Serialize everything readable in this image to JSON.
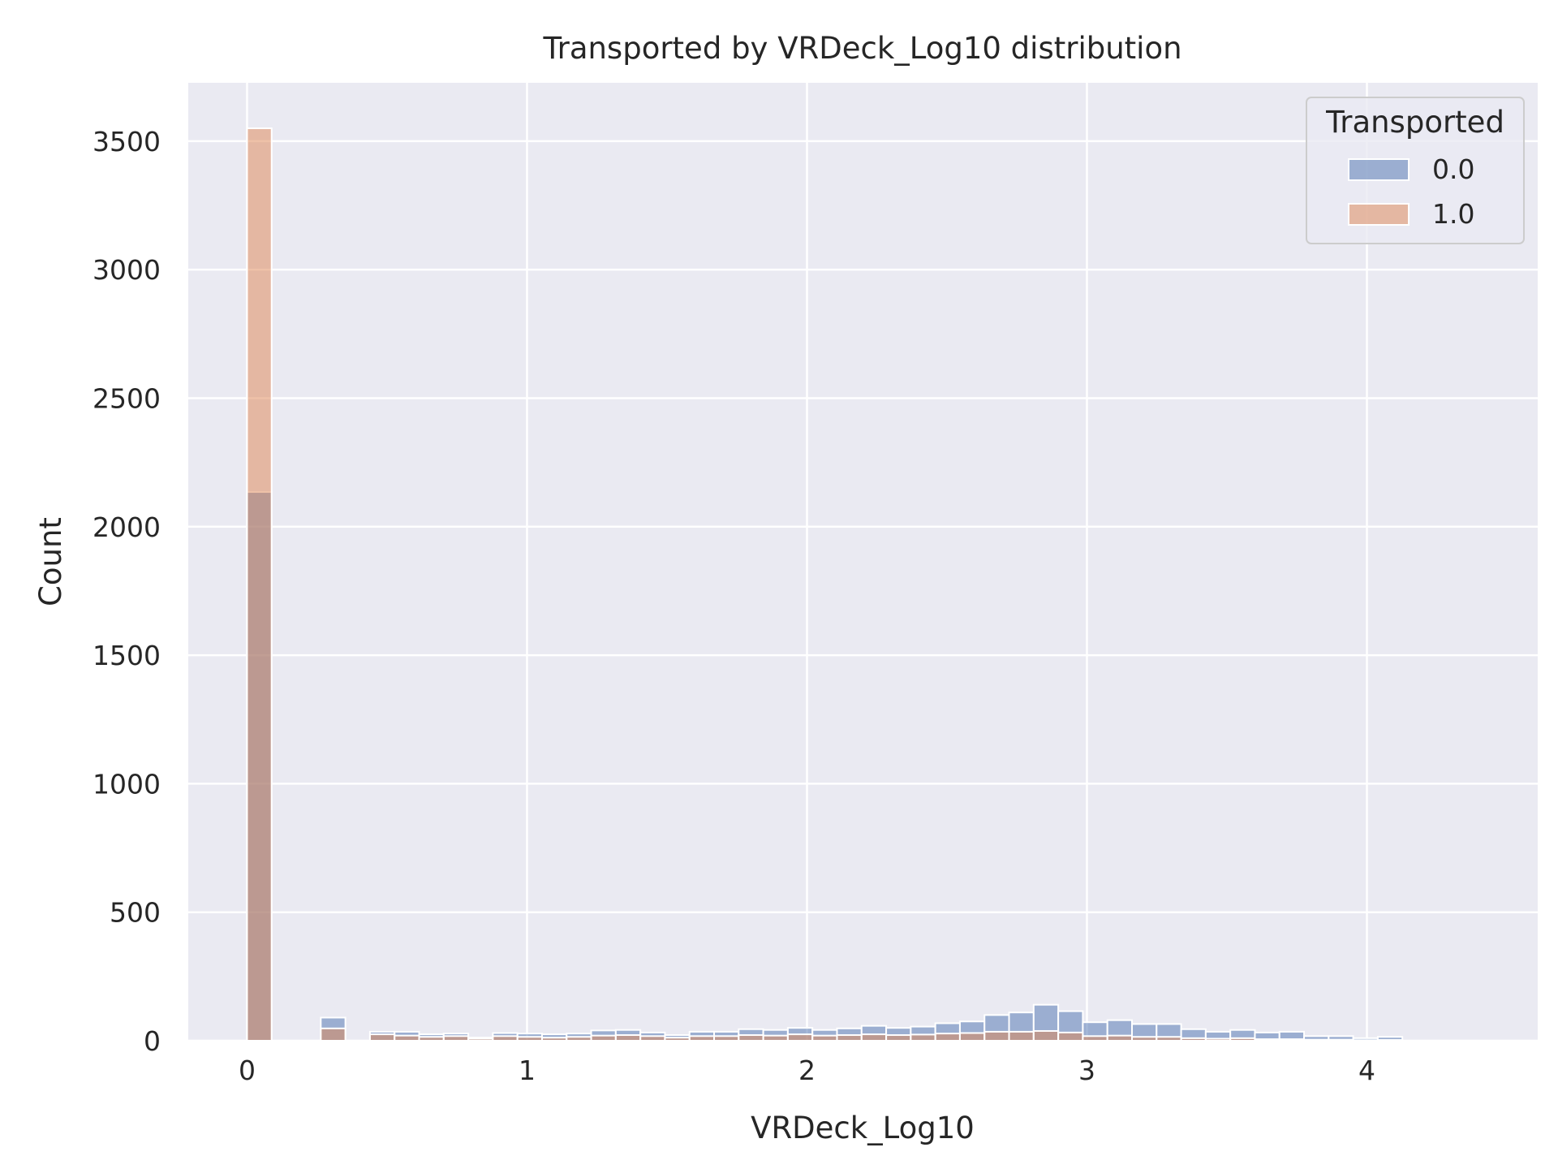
{
  "chart_data": {
    "type": "bar",
    "title": "Transported by VRDeck_Log10 distribution",
    "xlabel": "VRDeck_Log10",
    "ylabel": "Count",
    "xlim": [
      -0.21,
      4.61
    ],
    "ylim": [
      0,
      3727
    ],
    "xticks": [
      0,
      1,
      2,
      3,
      4
    ],
    "yticks": [
      0,
      500,
      1000,
      1500,
      2000,
      2500,
      3000,
      3500
    ],
    "grid": true,
    "legend": {
      "title": "Transported",
      "position": "top-right"
    },
    "bin_width": 0.0878,
    "bin_starts": [
      0.0,
      0.0878,
      0.1756,
      0.2634,
      0.3512,
      0.439,
      0.5268,
      0.6146,
      0.7024,
      0.7902,
      0.878,
      0.9658,
      1.0536,
      1.1414,
      1.2292,
      1.317,
      1.4048,
      1.4926,
      1.5804,
      1.6682,
      1.756,
      1.8438,
      1.9316,
      2.0194,
      2.1072,
      2.195,
      2.2828,
      2.3706,
      2.4584,
      2.5462,
      2.634,
      2.7218,
      2.8096,
      2.8974,
      2.9852,
      3.073,
      3.1608,
      3.2486,
      3.3364,
      3.4242,
      3.512,
      3.5998,
      3.6876,
      3.7754,
      3.8632,
      3.951,
      4.0388,
      4.1266,
      4.2144,
      4.3022
    ],
    "series": [
      {
        "name": "0.0",
        "color": "#4c72b0",
        "values": [
          2135,
          0,
          0,
          90,
          0,
          35,
          35,
          25,
          28,
          12,
          30,
          28,
          25,
          28,
          40,
          42,
          32,
          22,
          35,
          35,
          45,
          42,
          50,
          42,
          48,
          58,
          50,
          55,
          68,
          75,
          100,
          110,
          140,
          115,
          72,
          80,
          65,
          65,
          45,
          35,
          42,
          32,
          35,
          18,
          18,
          10,
          15,
          0,
          0,
          0
        ]
      },
      {
        "name": "1.0",
        "color": "#dd8452",
        "values": [
          3550,
          0,
          0,
          48,
          0,
          25,
          20,
          15,
          18,
          8,
          18,
          15,
          12,
          15,
          20,
          22,
          18,
          12,
          18,
          18,
          22,
          20,
          25,
          20,
          22,
          25,
          22,
          24,
          28,
          30,
          35,
          35,
          38,
          32,
          18,
          20,
          15,
          15,
          10,
          8,
          10,
          6,
          6,
          4,
          4,
          2,
          3,
          0,
          0,
          0
        ]
      }
    ]
  }
}
